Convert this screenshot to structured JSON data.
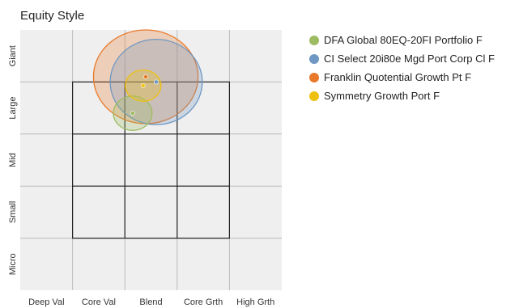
{
  "chart_data": {
    "type": "scatter",
    "title": "Equity Style",
    "x_labels": [
      "Deep Val",
      "Core Val",
      "Blend",
      "Core Grth",
      "High Grth"
    ],
    "y_labels": [
      "Giant",
      "Large",
      "Mid",
      "Small",
      "Micro"
    ],
    "series": [
      {
        "name": "DFA Global 80EQ-20FI Portfolio F",
        "color": "#9dbb61",
        "x": 2.15,
        "y": 1.6,
        "rx": 0.37,
        "ry": 0.33
      },
      {
        "name": "CI Select 20i80e Mgd Port Corp Cl F",
        "color": "#6f97c3",
        "x": 2.6,
        "y": 1.0,
        "rx": 0.88,
        "ry": 0.82
      },
      {
        "name": "Franklin Quotential Growth Pt F",
        "color": "#e8792a",
        "x": 2.4,
        "y": 0.9,
        "rx": 1.0,
        "ry": 0.9
      },
      {
        "name": "Symmetry Growth Port F",
        "color": "#eec00f",
        "x": 2.35,
        "y": 1.07,
        "rx": 0.34,
        "ry": 0.3
      }
    ]
  }
}
